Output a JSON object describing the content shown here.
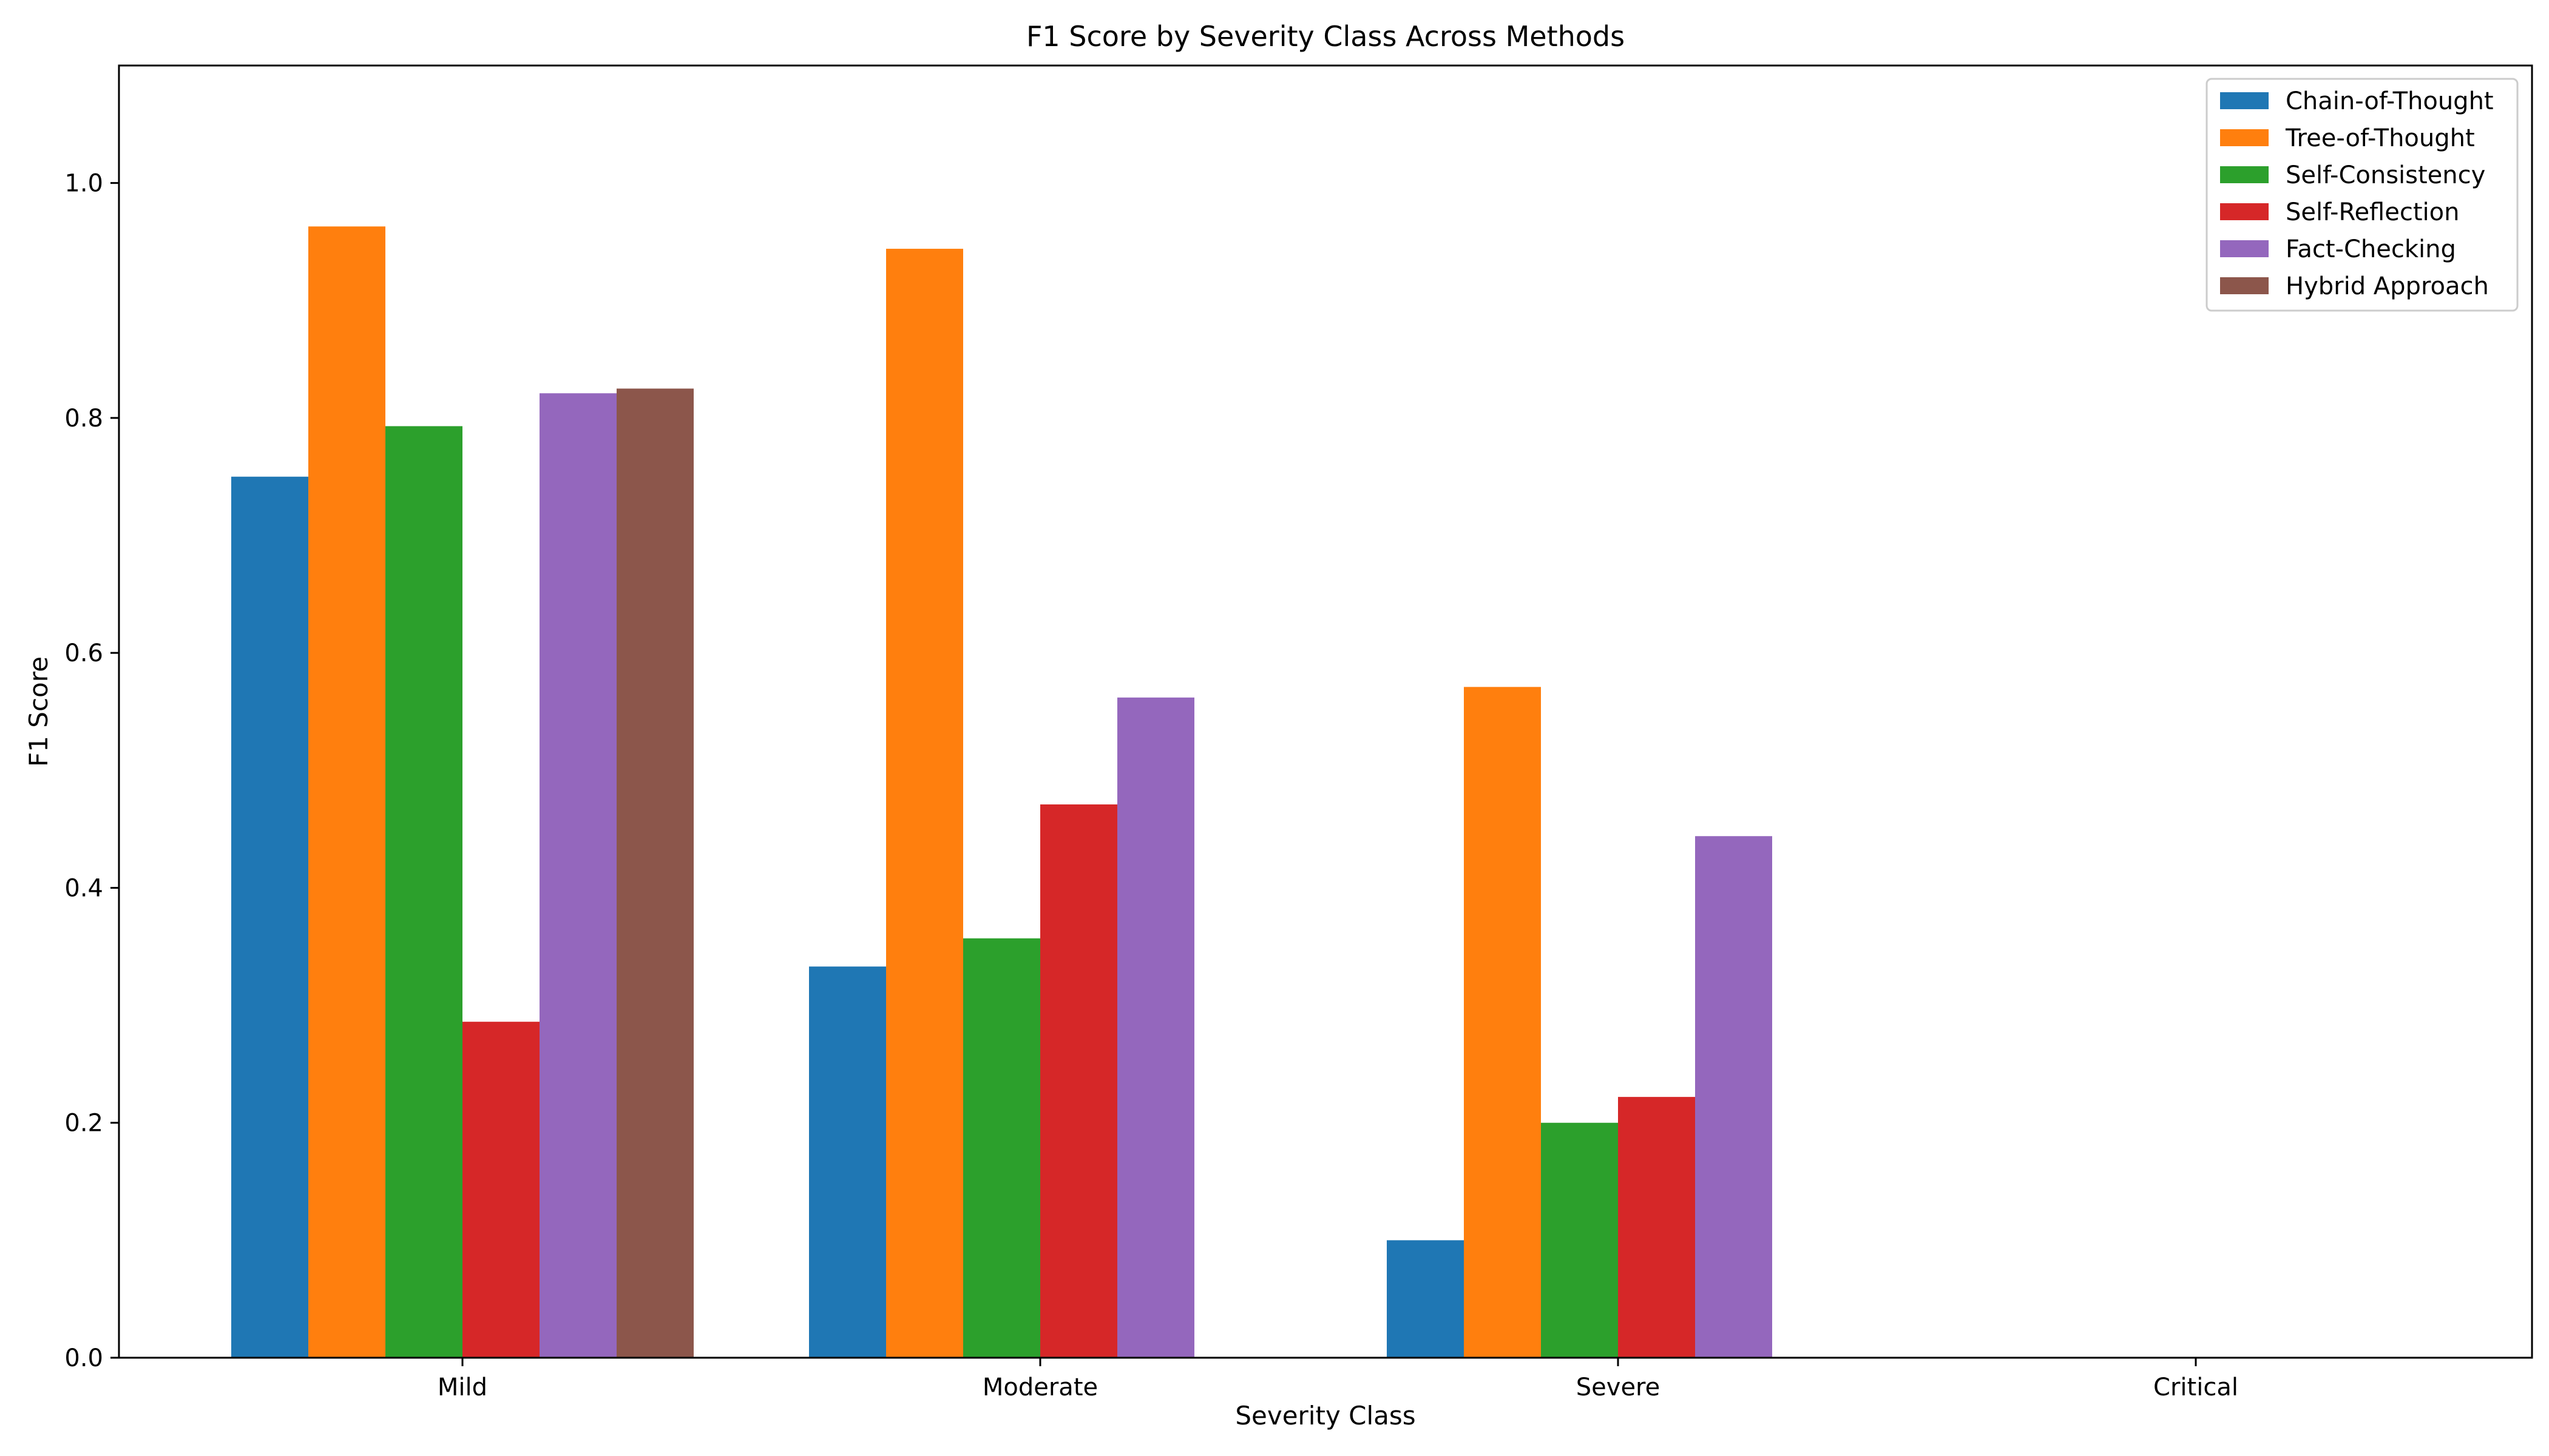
{
  "chart_data": {
    "type": "bar",
    "title": "F1 Score by Severity Class Across Methods",
    "xlabel": "Severity Class",
    "ylabel": "F1 Score",
    "ylim": [
      0,
      1.1
    ],
    "yticks": [
      0.0,
      0.2,
      0.4,
      0.6,
      0.8,
      1.0
    ],
    "ytick_labels": [
      "0.0",
      "0.2",
      "0.4",
      "0.6",
      "0.8",
      "1.0"
    ],
    "grid": false,
    "legend_position": "top-right",
    "categories": [
      "Mild",
      "Moderate",
      "Severe",
      "Critical"
    ],
    "series": [
      {
        "name": "Chain-of-Thought",
        "color": "#1f77b4",
        "values": [
          0.75,
          0.333,
          0.1,
          0.0
        ]
      },
      {
        "name": "Tree-of-Thought",
        "color": "#ff7f0e",
        "values": [
          0.963,
          0.944,
          0.571,
          0.0
        ]
      },
      {
        "name": "Self-Consistency",
        "color": "#2ca02c",
        "values": [
          0.793,
          0.357,
          0.2,
          0.0
        ]
      },
      {
        "name": "Self-Reflection",
        "color": "#d62728",
        "values": [
          0.286,
          0.471,
          0.222,
          0.0
        ]
      },
      {
        "name": "Fact-Checking",
        "color": "#9467bd",
        "values": [
          0.821,
          0.562,
          0.444,
          0.0
        ]
      },
      {
        "name": "Hybrid Approach",
        "color": "#8c564b",
        "values": [
          0.825,
          0.0,
          0.0,
          0.0
        ]
      }
    ]
  }
}
